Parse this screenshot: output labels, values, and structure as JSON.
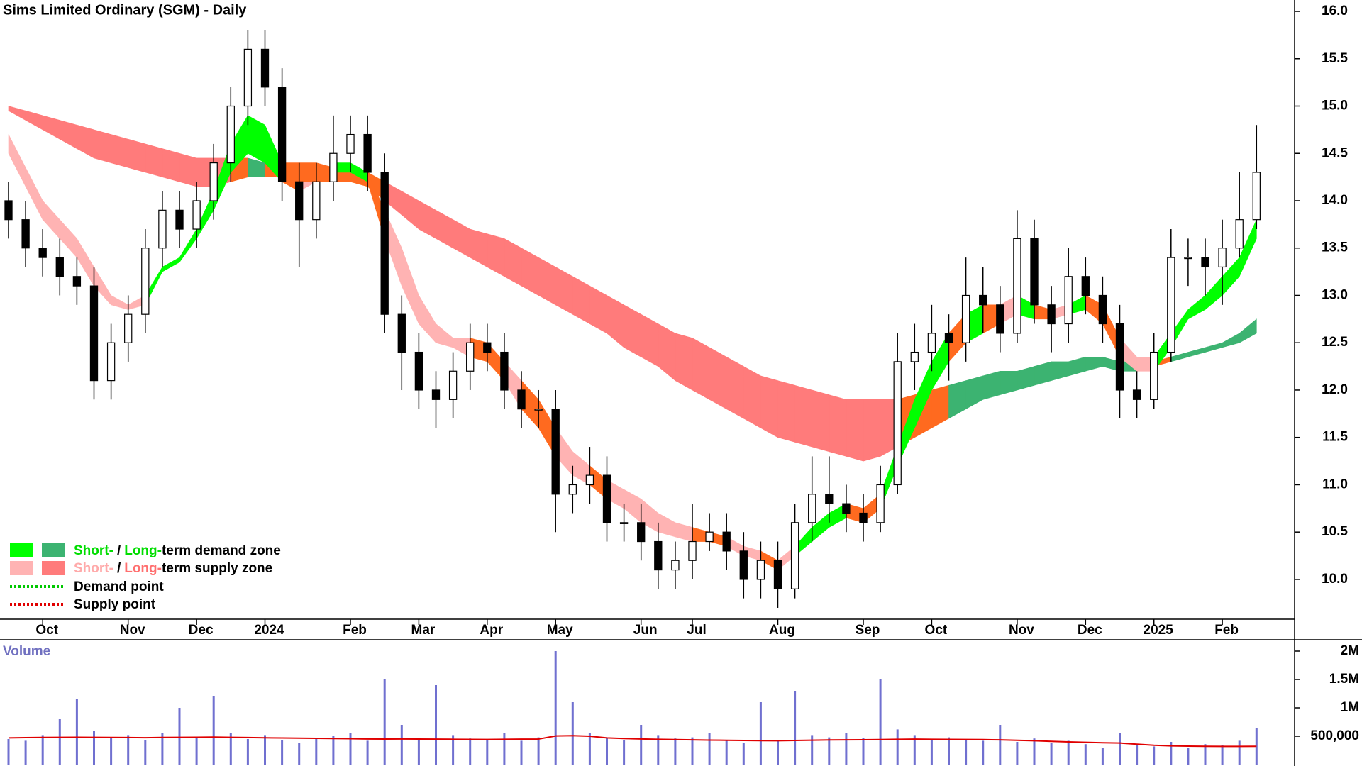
{
  "chart_data": [
    {
      "type": "candlestick",
      "title": "Sims Limited Ordinary (SGM) - Daily",
      "categories": [
        null,
        null,
        "Oct",
        null,
        null,
        null,
        null,
        "Nov",
        null,
        null,
        null,
        "Dec",
        null,
        null,
        null,
        "2024",
        null,
        null,
        null,
        null,
        "Feb",
        null,
        null,
        null,
        "Mar",
        null,
        null,
        null,
        "Apr",
        null,
        null,
        null,
        "May",
        null,
        null,
        null,
        null,
        "Jun",
        null,
        null,
        "Jul",
        null,
        null,
        null,
        null,
        "Aug",
        null,
        null,
        null,
        null,
        "Sep",
        null,
        null,
        null,
        "Oct",
        null,
        null,
        null,
        null,
        "Nov",
        null,
        null,
        null,
        "Dec",
        null,
        null,
        null,
        "2025",
        null,
        null,
        null,
        "Feb",
        null,
        null
      ],
      "open": [
        14.0,
        13.8,
        13.5,
        13.4,
        13.2,
        13.1,
        12.1,
        12.5,
        12.8,
        13.5,
        13.9,
        13.7,
        14.0,
        14.4,
        15.0,
        15.6,
        15.2,
        14.2,
        13.8,
        14.2,
        14.5,
        14.7,
        14.3,
        12.8,
        12.4,
        12.0,
        11.9,
        12.2,
        12.5,
        12.4,
        12.0,
        11.8,
        11.8,
        10.9,
        11.0,
        11.1,
        10.6,
        10.6,
        10.4,
        10.1,
        10.2,
        10.4,
        10.5,
        10.3,
        10.0,
        10.2,
        9.9,
        10.6,
        10.9,
        10.8,
        10.7,
        10.6,
        11.0,
        12.3,
        12.4,
        12.6,
        12.5,
        13.0,
        12.9,
        12.6,
        13.6,
        12.9,
        12.7,
        13.2,
        13.0,
        12.7,
        12.0,
        11.9,
        12.4,
        13.4,
        13.4,
        13.3,
        13.5,
        13.8
      ],
      "high": [
        14.2,
        14.0,
        13.7,
        13.6,
        13.4,
        13.3,
        12.7,
        13.0,
        13.7,
        14.1,
        14.1,
        14.2,
        14.6,
        15.2,
        15.8,
        15.8,
        15.4,
        14.4,
        14.4,
        14.9,
        14.9,
        14.9,
        14.5,
        13.0,
        12.6,
        12.2,
        12.4,
        12.7,
        12.7,
        12.6,
        12.2,
        12.0,
        12.0,
        11.2,
        11.4,
        11.3,
        10.8,
        10.8,
        10.6,
        10.4,
        10.8,
        10.7,
        10.7,
        10.5,
        10.4,
        10.4,
        10.8,
        11.3,
        11.3,
        11.0,
        10.9,
        11.2,
        12.6,
        12.7,
        12.9,
        12.8,
        13.4,
        13.3,
        13.1,
        13.9,
        13.8,
        13.1,
        13.5,
        13.4,
        13.2,
        12.9,
        12.2,
        12.6,
        13.7,
        13.6,
        13.6,
        13.8,
        14.3,
        14.8
      ],
      "low": [
        13.6,
        13.3,
        13.2,
        13.0,
        12.9,
        11.9,
        11.9,
        12.3,
        12.6,
        13.3,
        13.5,
        13.5,
        13.8,
        14.2,
        14.8,
        15.0,
        14.0,
        13.3,
        13.6,
        14.0,
        14.3,
        14.1,
        12.6,
        12.0,
        11.8,
        11.6,
        11.7,
        12.0,
        12.2,
        11.8,
        11.6,
        11.6,
        10.5,
        10.7,
        10.8,
        10.4,
        10.4,
        10.2,
        9.9,
        9.9,
        10.0,
        10.3,
        10.1,
        9.8,
        9.8,
        9.7,
        9.8,
        10.4,
        10.6,
        10.5,
        10.4,
        10.5,
        10.9,
        12.0,
        12.2,
        12.1,
        12.3,
        12.6,
        12.4,
        12.5,
        12.7,
        12.4,
        12.5,
        12.8,
        12.5,
        11.7,
        11.7,
        11.8,
        12.3,
        13.1,
        13.0,
        12.9,
        13.4,
        13.7
      ],
      "close": [
        13.8,
        13.5,
        13.4,
        13.2,
        13.1,
        12.1,
        12.5,
        12.8,
        13.5,
        13.9,
        13.7,
        14.0,
        14.4,
        15.0,
        15.6,
        15.2,
        14.2,
        13.8,
        14.2,
        14.5,
        14.7,
        14.3,
        12.8,
        12.4,
        12.0,
        11.9,
        12.2,
        12.5,
        12.4,
        12.0,
        11.8,
        11.8,
        10.9,
        11.0,
        11.1,
        10.6,
        10.6,
        10.4,
        10.1,
        10.2,
        10.4,
        10.5,
        10.3,
        10.0,
        10.2,
        9.9,
        10.6,
        10.9,
        10.8,
        10.7,
        10.6,
        11.0,
        12.3,
        12.4,
        12.6,
        12.5,
        13.0,
        12.9,
        12.6,
        13.6,
        12.9,
        12.7,
        13.2,
        13.0,
        12.7,
        12.0,
        11.9,
        12.4,
        13.4,
        13.4,
        13.3,
        13.5,
        13.8,
        14.3
      ],
      "short_zone": {
        "upper": [
          14.7,
          14.35,
          14.0,
          13.8,
          13.6,
          13.3,
          13.0,
          12.9,
          13.0,
          13.3,
          13.4,
          13.7,
          14.1,
          14.6,
          14.9,
          14.8,
          14.4,
          14.2,
          14.2,
          14.4,
          14.4,
          14.3,
          13.9,
          13.5,
          13.0,
          12.7,
          12.55,
          12.55,
          12.5,
          12.3,
          12.1,
          11.9,
          11.6,
          11.35,
          11.2,
          11.05,
          10.95,
          10.85,
          10.7,
          10.6,
          10.55,
          10.5,
          10.45,
          10.35,
          10.3,
          10.2,
          10.35,
          10.55,
          10.7,
          10.8,
          10.75,
          10.9,
          11.4,
          11.9,
          12.3,
          12.6,
          12.8,
          12.9,
          12.9,
          13.0,
          12.9,
          12.85,
          12.9,
          13.0,
          12.9,
          12.55,
          12.35,
          12.35,
          12.6,
          12.85,
          13.0,
          13.2,
          13.4,
          13.8
        ],
        "lower": [
          14.5,
          14.15,
          13.8,
          13.6,
          13.4,
          13.1,
          12.9,
          12.85,
          12.9,
          13.25,
          13.35,
          13.6,
          13.9,
          14.3,
          14.5,
          14.4,
          14.2,
          14.1,
          14.2,
          14.3,
          14.3,
          14.2,
          13.6,
          13.1,
          12.7,
          12.5,
          12.45,
          12.35,
          12.3,
          12.1,
          11.8,
          11.6,
          11.3,
          11.1,
          11.0,
          10.85,
          10.75,
          10.6,
          10.5,
          10.45,
          10.4,
          10.4,
          10.35,
          10.25,
          10.2,
          10.1,
          10.25,
          10.4,
          10.55,
          10.65,
          10.6,
          10.75,
          11.2,
          11.6,
          12.0,
          12.3,
          12.5,
          12.6,
          12.7,
          12.8,
          12.75,
          12.75,
          12.8,
          12.85,
          12.7,
          12.35,
          12.2,
          12.2,
          12.45,
          12.75,
          12.85,
          13.0,
          13.2,
          13.6
        ]
      },
      "long_zone": {
        "upper": [
          15.0,
          14.95,
          14.9,
          14.85,
          14.8,
          14.75,
          14.7,
          14.65,
          14.6,
          14.55,
          14.5,
          14.45,
          14.45,
          14.45,
          14.45,
          14.4,
          14.4,
          14.4,
          14.4,
          14.35,
          14.35,
          14.3,
          14.2,
          14.1,
          14.0,
          13.9,
          13.8,
          13.7,
          13.65,
          13.6,
          13.5,
          13.4,
          13.3,
          13.2,
          13.1,
          13.0,
          12.9,
          12.8,
          12.7,
          12.6,
          12.55,
          12.45,
          12.35,
          12.25,
          12.15,
          12.1,
          12.05,
          12.0,
          11.95,
          11.9,
          11.9,
          11.9,
          11.9,
          11.95,
          12.0,
          12.05,
          12.1,
          12.15,
          12.2,
          12.2,
          12.25,
          12.3,
          12.3,
          12.35,
          12.35,
          12.3,
          12.3,
          12.3,
          12.35,
          12.4,
          12.45,
          12.5,
          12.6,
          12.75
        ],
        "lower": [
          14.95,
          14.85,
          14.75,
          14.65,
          14.55,
          14.45,
          14.4,
          14.35,
          14.3,
          14.25,
          14.2,
          14.15,
          14.15,
          14.2,
          14.25,
          14.25,
          14.25,
          14.2,
          14.2,
          14.2,
          14.2,
          14.15,
          14.0,
          13.85,
          13.7,
          13.6,
          13.5,
          13.4,
          13.3,
          13.2,
          13.1,
          13.0,
          12.9,
          12.8,
          12.7,
          12.6,
          12.45,
          12.35,
          12.25,
          12.1,
          12.0,
          11.9,
          11.8,
          11.7,
          11.6,
          11.5,
          11.45,
          11.4,
          11.35,
          11.3,
          11.25,
          11.3,
          11.4,
          11.5,
          11.6,
          11.7,
          11.8,
          11.9,
          11.95,
          12.0,
          12.05,
          12.1,
          12.15,
          12.2,
          12.25,
          12.2,
          12.2,
          12.25,
          12.3,
          12.35,
          12.4,
          12.45,
          12.5,
          12.6
        ]
      },
      "colors": {
        "short_demand": "#00ff00",
        "long_demand": "#3cb371",
        "short_supply": "#ffb3b3",
        "long_supply": "#ff7b7b",
        "neutral": "#ff6a1f",
        "demand_point": "#00c800",
        "supply_point": "#e00000",
        "candle": "#000000"
      },
      "legend": {
        "demand_zone": [
          "Short-",
          "/",
          "Long-",
          "term demand zone"
        ],
        "supply_zone": [
          "Short-",
          "/",
          "Long-",
          "term supply zone"
        ],
        "demand_point": "Demand point",
        "supply_point": "Supply point"
      },
      "ylim": [
        9.58,
        16.12
      ],
      "yticks": [
        {
          "value": 10,
          "label": "10.0"
        },
        {
          "value": 10.5,
          "label": "10.5"
        },
        {
          "value": 11,
          "label": "11.0"
        },
        {
          "value": 11.5,
          "label": "11.5"
        },
        {
          "value": 12,
          "label": "12.0"
        },
        {
          "value": 12.5,
          "label": "12.5"
        },
        {
          "value": 13,
          "label": "13.0"
        },
        {
          "value": 13.5,
          "label": "13.5"
        },
        {
          "value": 14,
          "label": "14.0"
        },
        {
          "value": 14.5,
          "label": "14.5"
        },
        {
          "value": 15,
          "label": "15.0"
        },
        {
          "value": 15.5,
          "label": "15.5"
        },
        {
          "value": 16,
          "label": "16.0"
        }
      ]
    },
    {
      "type": "bar",
      "title": "Volume",
      "values": [
        450000,
        420000,
        520000,
        800000,
        1150000,
        600000,
        480000,
        520000,
        430000,
        560000,
        1000000,
        470000,
        1200000,
        560000,
        450000,
        520000,
        430000,
        380000,
        470000,
        500000,
        560000,
        420000,
        1500000,
        700000,
        450000,
        1400000,
        520000,
        460000,
        430000,
        560000,
        420000,
        480000,
        2000000,
        1100000,
        560000,
        480000,
        430000,
        700000,
        520000,
        460000,
        480000,
        560000,
        420000,
        380000,
        1100000,
        430000,
        1300000,
        520000,
        480000,
        560000,
        470000,
        1500000,
        620000,
        520000,
        430000,
        480000,
        450000,
        420000,
        700000,
        400000,
        460000,
        380000,
        420000,
        360000,
        300000,
        560000,
        340000,
        320000,
        400000,
        300000,
        360000,
        340000,
        420000,
        650000
      ],
      "average": {
        "values": [
          470000,
          475000,
          478000,
          480000,
          482000,
          480000,
          478000,
          476000,
          474000,
          478000,
          480000,
          482000,
          485000,
          480000,
          476000,
          472000,
          468000,
          465000,
          462000,
          460000,
          456000,
          452000,
          450000,
          452000,
          450000,
          448000,
          446000,
          444000,
          442000,
          445000,
          448000,
          450000,
          505000,
          510000,
          500000,
          470000,
          460000,
          452000,
          446000,
          440000,
          436000,
          432000,
          428000,
          425000,
          422000,
          420000,
          425000,
          430000,
          434000,
          436000,
          438000,
          440000,
          445000,
          448000,
          446000,
          444000,
          442000,
          440000,
          436000,
          428000,
          420000,
          410000,
          400000,
          392000,
          385000,
          380000,
          360000,
          340000,
          330000,
          325000,
          322000,
          320000,
          320000,
          322000
        ],
        "color": "#e00000"
      },
      "color": "#7070d0",
      "ylim": [
        0,
        2200000
      ],
      "yticks": [
        {
          "value": 500000,
          "label": "500,000"
        },
        {
          "value": 1000000,
          "label": "1M"
        },
        {
          "value": 1500000,
          "label": "1.5M"
        },
        {
          "value": 2000000,
          "label": "2M"
        }
      ]
    }
  ]
}
